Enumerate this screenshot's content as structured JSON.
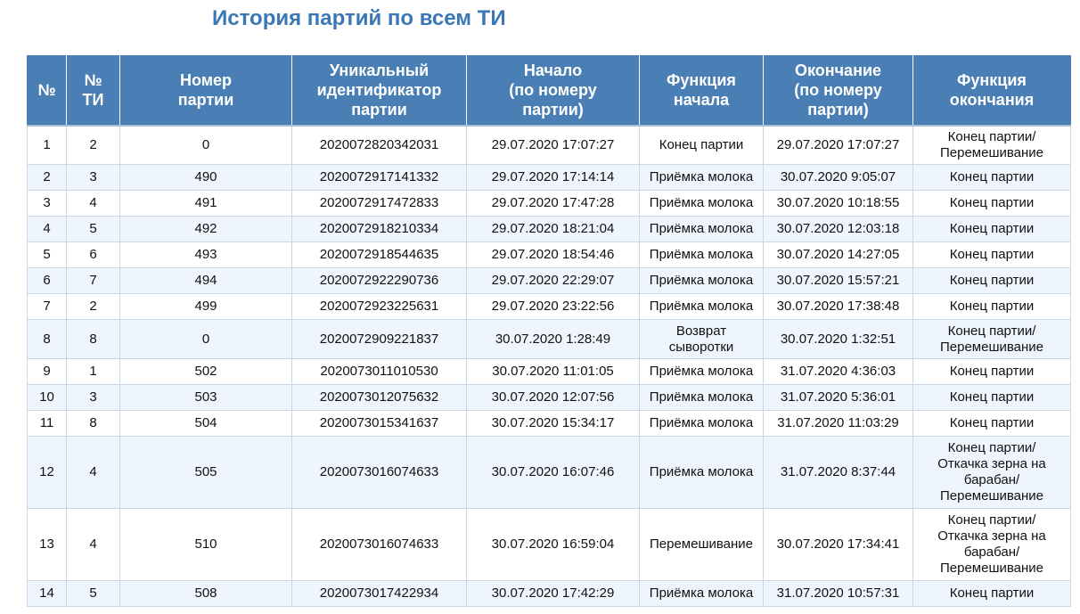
{
  "page": {
    "title": "История партий по всем ТИ"
  },
  "table": {
    "columns": [
      "№",
      "№\nТИ",
      "Номер\nпартии",
      "Уникальный\nидентификатор\nпартии",
      "Начало\n(по номеру\nпартии)",
      "Функция\nначала",
      "Окончание\n(по номеру\nпартии)",
      "Функция\nокончания"
    ],
    "rows": [
      {
        "n": "1",
        "ti": "2",
        "batch": "0",
        "uid": "2020072820342031",
        "start": "29.07.2020 17:07:27",
        "start_fn": "Конец партии",
        "end": "29.07.2020 17:07:27",
        "end_fn": "Конец партии/\nПеремешивание"
      },
      {
        "n": "2",
        "ti": "3",
        "batch": "490",
        "uid": "2020072917141332",
        "start": "29.07.2020 17:14:14",
        "start_fn": "Приёмка молока",
        "end": "30.07.2020 9:05:07",
        "end_fn": "Конец партии"
      },
      {
        "n": "3",
        "ti": "4",
        "batch": "491",
        "uid": "2020072917472833",
        "start": "29.07.2020 17:47:28",
        "start_fn": "Приёмка молока",
        "end": "30.07.2020 10:18:55",
        "end_fn": "Конец партии"
      },
      {
        "n": "4",
        "ti": "5",
        "batch": "492",
        "uid": "2020072918210334",
        "start": "29.07.2020 18:21:04",
        "start_fn": "Приёмка молока",
        "end": "30.07.2020 12:03:18",
        "end_fn": "Конец партии"
      },
      {
        "n": "5",
        "ti": "6",
        "batch": "493",
        "uid": "2020072918544635",
        "start": "29.07.2020 18:54:46",
        "start_fn": "Приёмка молока",
        "end": "30.07.2020 14:27:05",
        "end_fn": "Конец партии"
      },
      {
        "n": "6",
        "ti": "7",
        "batch": "494",
        "uid": "2020072922290736",
        "start": "29.07.2020 22:29:07",
        "start_fn": "Приёмка молока",
        "end": "30.07.2020 15:57:21",
        "end_fn": "Конец партии"
      },
      {
        "n": "7",
        "ti": "2",
        "batch": "499",
        "uid": "2020072923225631",
        "start": "29.07.2020 23:22:56",
        "start_fn": "Приёмка молока",
        "end": "30.07.2020 17:38:48",
        "end_fn": "Конец партии"
      },
      {
        "n": "8",
        "ti": "8",
        "batch": "0",
        "uid": "2020072909221837",
        "start": "30.07.2020 1:28:49",
        "start_fn": "Возврат\nсыворотки",
        "end": "30.07.2020 1:32:51",
        "end_fn": "Конец партии/\nПеремешивание"
      },
      {
        "n": "9",
        "ti": "1",
        "batch": "502",
        "uid": "2020073011010530",
        "start": "30.07.2020 11:01:05",
        "start_fn": "Приёмка молока",
        "end": "31.07.2020 4:36:03",
        "end_fn": "Конец партии"
      },
      {
        "n": "10",
        "ti": "3",
        "batch": "503",
        "uid": "2020073012075632",
        "start": "30.07.2020 12:07:56",
        "start_fn": "Приёмка молока",
        "end": "31.07.2020 5:36:01",
        "end_fn": "Конец партии"
      },
      {
        "n": "11",
        "ti": "8",
        "batch": "504",
        "uid": "2020073015341637",
        "start": "30.07.2020 15:34:17",
        "start_fn": "Приёмка молока",
        "end": "31.07.2020 11:03:29",
        "end_fn": "Конец партии"
      },
      {
        "n": "12",
        "ti": "4",
        "batch": "505",
        "uid": "2020073016074633",
        "start": "30.07.2020 16:07:46",
        "start_fn": "Приёмка молока",
        "end": "31.07.2020 8:37:44",
        "end_fn": "Конец партии/\nОткачка зерна на\nбарабан/\nПеремешивание"
      },
      {
        "n": "13",
        "ti": "4",
        "batch": "510",
        "uid": "2020073016074633",
        "start": "30.07.2020 16:59:04",
        "start_fn": "Перемешивание",
        "end": "30.07.2020 17:34:41",
        "end_fn": "Конец партии/\nОткачка зерна на\nбарабан/\nПеремешивание"
      },
      {
        "n": "14",
        "ti": "5",
        "batch": "508",
        "uid": "2020073017422934",
        "start": "30.07.2020 17:42:29",
        "start_fn": "Приёмка молока",
        "end": "31.07.2020 10:57:31",
        "end_fn": "Конец партии"
      }
    ]
  }
}
